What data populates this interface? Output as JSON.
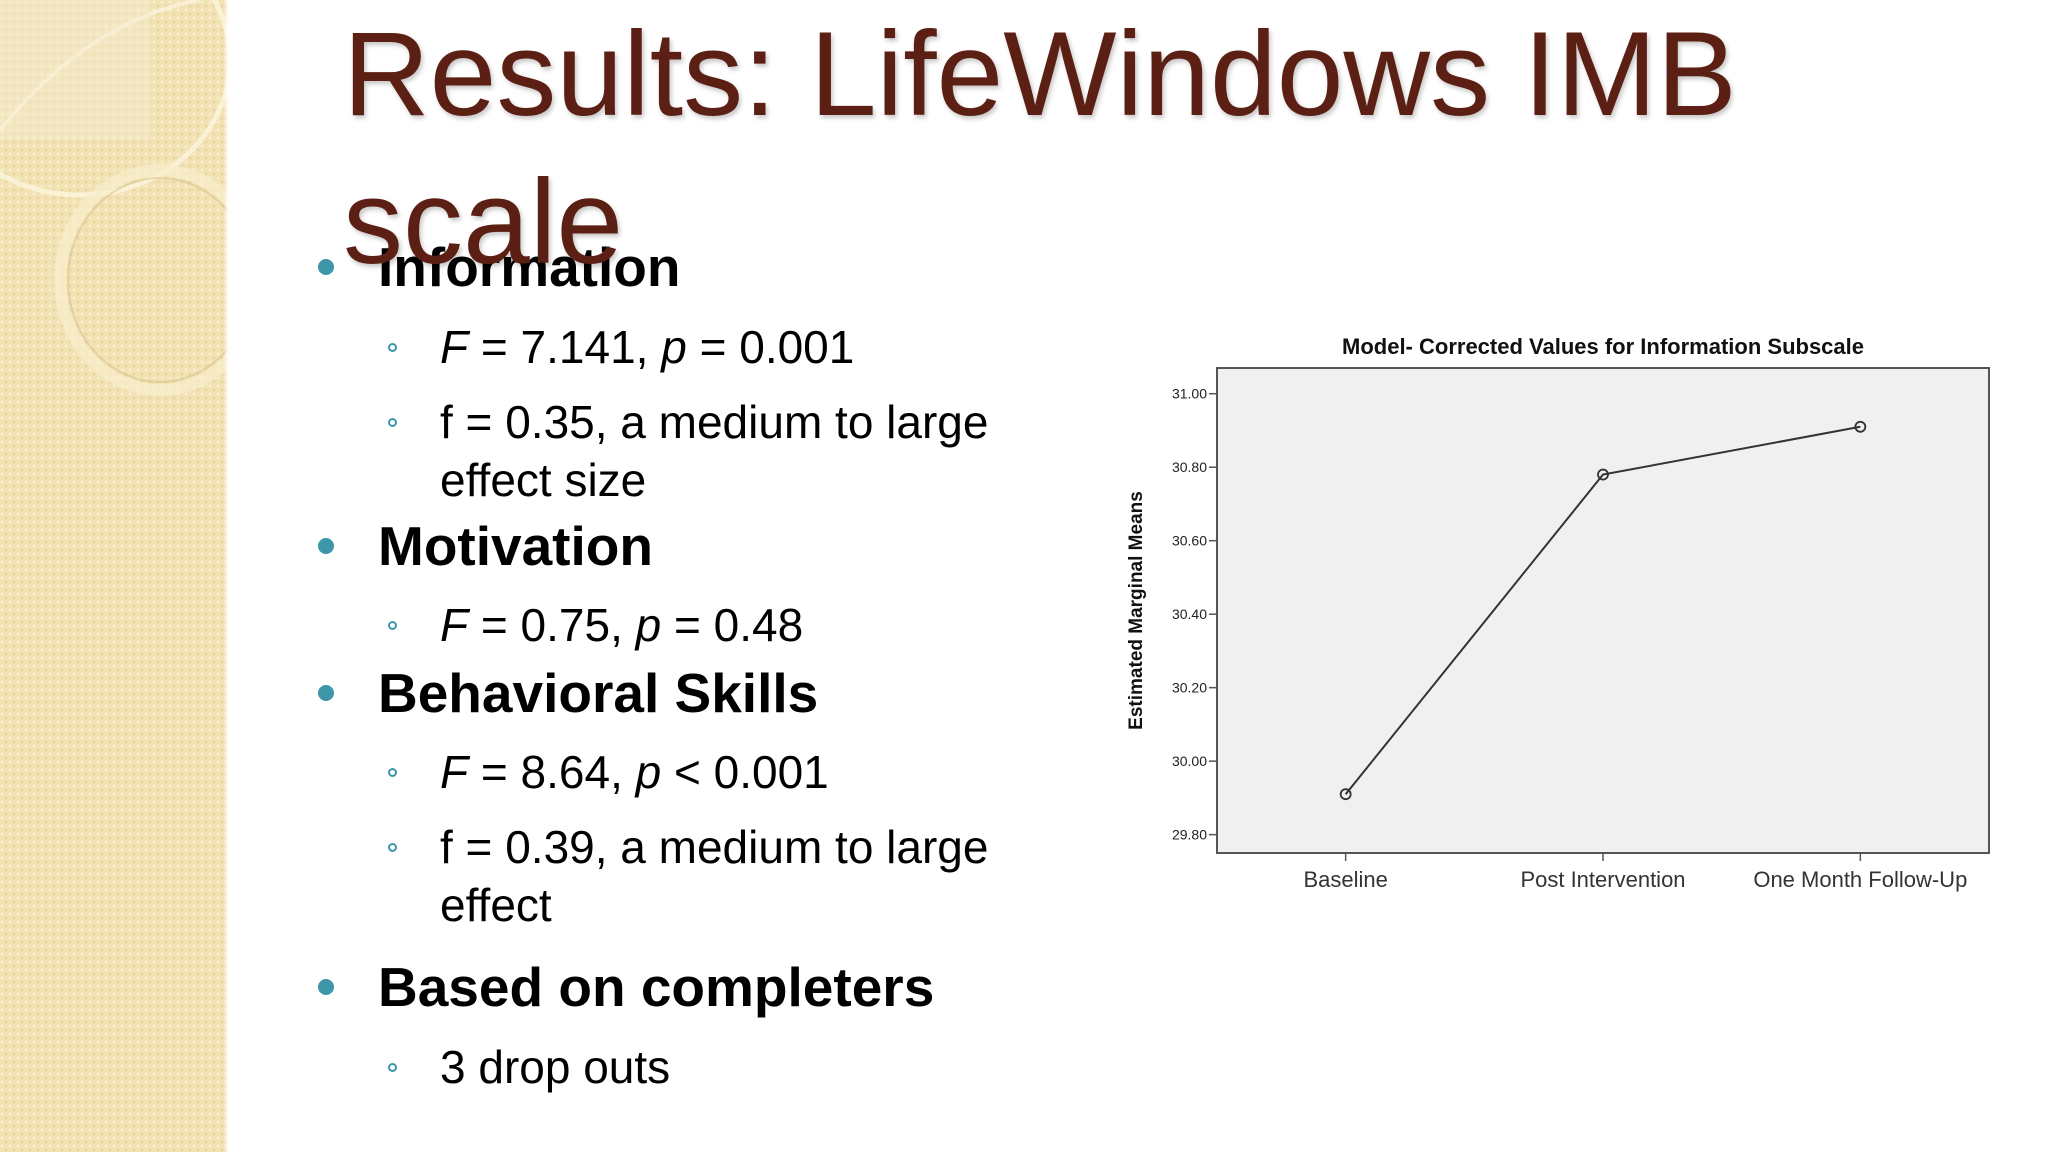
{
  "slide": {
    "title": "Results: LifeWindows IMB scale",
    "sections": [
      {
        "heading": "Information",
        "items": [
          {
            "parts": [
              {
                "t": "F",
                "i": true
              },
              {
                "t": " = 7.141, "
              },
              {
                "t": "p",
                "i": true
              },
              {
                "t": " = 0.001"
              }
            ]
          },
          {
            "lines": [
              "f = 0.35,  a medium to large",
              "effect size"
            ]
          }
        ]
      },
      {
        "heading": "Motivation",
        "items": [
          {
            "parts": [
              {
                "t": "F",
                "i": true
              },
              {
                "t": " = 0.75, "
              },
              {
                "t": "p",
                "i": true
              },
              {
                "t": " = 0.48"
              }
            ]
          }
        ]
      },
      {
        "heading": "Behavioral Skills",
        "items": [
          {
            "parts": [
              {
                "t": "F",
                "i": true
              },
              {
                "t": " = 8.64, "
              },
              {
                "t": "p",
                "i": true
              },
              {
                "t": " < 0.001"
              }
            ]
          },
          {
            "lines": [
              "f = 0.39, a medium to large",
              "effect"
            ]
          }
        ]
      },
      {
        "heading": "Based on completers",
        "items": [
          {
            "parts": [
              {
                "t": "3 drop outs"
              }
            ]
          }
        ]
      }
    ]
  },
  "chart_data": {
    "type": "line",
    "title": "Model- Corrected Values for Information Subscale",
    "ylabel": "Estimated Marginal Means",
    "xlabel": "",
    "categories": [
      "Baseline",
      "Post Intervention",
      "One Month Follow-Up"
    ],
    "series": [
      {
        "values": [
          29.91,
          30.78,
          30.91
        ]
      }
    ],
    "ylim": [
      29.75,
      31.07
    ],
    "yticks": [
      29.8,
      30.0,
      30.2,
      30.4,
      30.6,
      30.8,
      31.0
    ],
    "ytick_labels": [
      "29.80",
      "30.00",
      "30.20",
      "30.40",
      "30.60",
      "30.80",
      "31.00"
    ],
    "grid": false,
    "legend": "none",
    "plot_background": "#f0f0f0",
    "line_color": "#333333"
  }
}
